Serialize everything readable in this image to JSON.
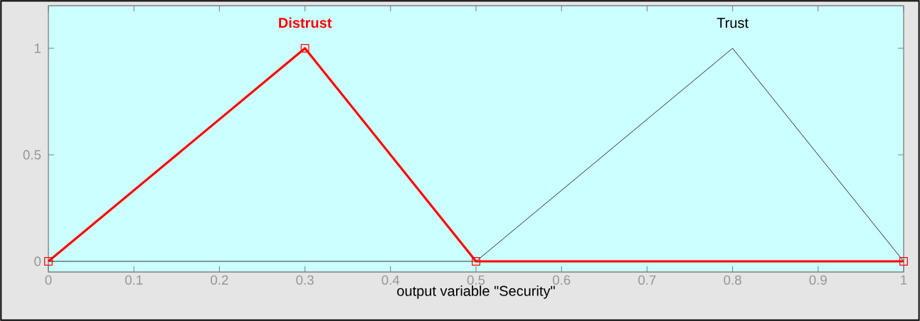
{
  "chart_data": {
    "type": "line",
    "xlabel": "output variable \"Security\"",
    "xlim": [
      0,
      1
    ],
    "ylim": [
      -0.05,
      1.2
    ],
    "xticks": [
      0,
      0.1,
      0.2,
      0.3,
      0.4,
      0.5,
      0.6,
      0.7,
      0.8,
      0.9,
      1
    ],
    "yticks": [
      0,
      0.5,
      1
    ],
    "grid": false,
    "legend": false,
    "series": [
      {
        "name": "Distrust",
        "color": "#ff0000",
        "x": [
          0,
          0.3,
          0.5,
          1
        ],
        "values": [
          0,
          1,
          0,
          0
        ],
        "marker": "square"
      },
      {
        "name": "Trust",
        "color": "#000000",
        "x": [
          0,
          0.5,
          0.8,
          1
        ],
        "values": [
          0,
          0,
          1,
          0
        ]
      }
    ]
  }
}
